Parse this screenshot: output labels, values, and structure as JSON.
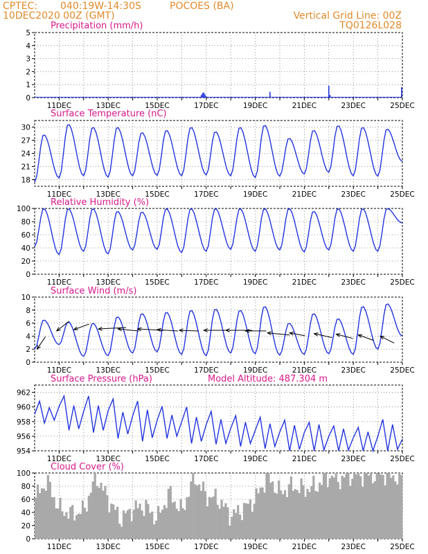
{
  "header": {
    "source": "CPTEC:",
    "location_code": "040:19W-14:30S",
    "station": "POCOES (BA)",
    "run": "10DEC2020 00Z (GMT)",
    "grid_note": "Vertical Grid Line: 00Z",
    "model_id": "TQ0126L028"
  },
  "colors": {
    "header": "#e08a2a",
    "panel_title": "#d6188a",
    "series": "#2233dd",
    "cloud": "#a9a9a9",
    "arrow": "#000000"
  },
  "x_axis": {
    "start_day": 10,
    "end_day": 25,
    "tick_labels": [
      "11DEC",
      "13DEC",
      "15DEC",
      "17DEC",
      "19DEC",
      "21DEC",
      "23DEC",
      "25DEC"
    ],
    "tick_days": [
      11,
      13,
      15,
      17,
      19,
      21,
      23,
      25
    ]
  },
  "chart_data": [
    {
      "type": "bar",
      "title": "Precipitation (mm/h)",
      "ylim": [
        0,
        5
      ],
      "yticks": [
        "0",
        "1",
        "2",
        "3",
        "4",
        "5"
      ],
      "x": [
        10.1,
        10.4,
        11.8,
        14.5,
        16.8,
        16.85,
        16.9,
        16.95,
        17.0,
        17.2,
        19.6,
        20.2,
        22.0,
        22.05,
        22.1,
        24.0,
        24.97
      ],
      "values": [
        0.06,
        0.04,
        0.03,
        0.03,
        0.2,
        0.35,
        0.4,
        0.25,
        0.1,
        0.05,
        0.45,
        0.04,
        0.9,
        0.2,
        0.05,
        0.04,
        0.8
      ]
    },
    {
      "type": "line",
      "title": "Surface Temperature (nC)",
      "ylim": [
        16.5,
        31.5
      ],
      "yticks": [
        "18",
        "21",
        "24",
        "27",
        "30"
      ],
      "ytick_values": [
        18,
        21,
        24,
        27,
        30
      ],
      "daily_max": [
        28.3,
        30.7,
        30.0,
        30.0,
        28.8,
        29.3,
        30.0,
        29.0,
        30.0,
        30.5,
        27.5,
        29.3,
        30.4,
        30.0,
        29.6
      ],
      "daily_min": [
        17.4,
        18.4,
        18.9,
        18.6,
        18.9,
        19.0,
        18.9,
        19.1,
        18.9,
        18.5,
        18.8,
        19.3,
        19.7,
        18.9,
        18.8
      ],
      "end_value": 22.2
    },
    {
      "type": "line",
      "title": "Relative Humidity (%)",
      "ylim": [
        0,
        100
      ],
      "yticks": [
        "0",
        "20",
        "40",
        "60",
        "80",
        "100"
      ],
      "ytick_values": [
        0,
        20,
        40,
        60,
        80,
        100
      ],
      "daily_max": [
        100,
        100,
        100,
        96,
        95,
        100,
        100,
        100,
        100,
        100,
        100,
        96,
        100,
        100,
        100
      ],
      "daily_min": [
        42,
        30,
        35,
        31,
        37,
        38,
        33,
        35,
        38,
        35,
        37,
        34,
        37,
        35,
        35
      ],
      "end_value": 78
    },
    {
      "type": "line",
      "title": "Surface Wind (m/s)",
      "ylim": [
        0,
        10
      ],
      "yticks": [
        "0",
        "2",
        "4",
        "6",
        "8",
        "10"
      ],
      "ytick_values": [
        0,
        2,
        4,
        6,
        8,
        10
      ],
      "daily_max": [
        6.5,
        6.2,
        6.0,
        7.0,
        7.5,
        7.7,
        8.0,
        8.2,
        8.0,
        8.6,
        6.0,
        7.5,
        6.7,
        8.6,
        9.0
      ],
      "daily_min": [
        2.0,
        2.7,
        0.9,
        1.0,
        1.4,
        1.6,
        1.2,
        1.0,
        1.4,
        1.3,
        1.1,
        1.2,
        1.3,
        1.2,
        2.0
      ],
      "end_value": 4.0,
      "arrows_x": [
        10.1,
        10.9,
        11.6,
        12.6,
        13.4,
        14.2,
        15.0,
        15.9,
        16.9,
        17.8,
        18.6,
        19.5,
        20.4,
        21.4,
        22.3,
        23.2,
        24.1
      ],
      "arrows_speed": [
        2.0,
        4.8,
        5.0,
        5.1,
        5.1,
        5.1,
        5.0,
        4.9,
        4.9,
        4.9,
        4.8,
        4.5,
        4.5,
        4.4,
        4.3,
        4.2,
        4.0
      ],
      "arrows_dx": [
        12,
        18,
        22,
        40,
        30,
        38,
        30,
        28,
        34,
        38,
        30,
        32,
        22,
        26,
        24,
        22,
        20
      ],
      "arrows_dy": [
        -18,
        -14,
        -8,
        -2,
        3,
        2,
        2,
        1,
        0,
        0,
        0,
        3,
        4,
        6,
        6,
        8,
        10
      ]
    },
    {
      "type": "line",
      "title": "Surface Pressure (hPa)",
      "annotation": "Model Altitude: 487.304 m",
      "ylim": [
        954,
        963
      ],
      "yticks": [
        "954",
        "956",
        "958",
        "960",
        "962"
      ],
      "ytick_values": [
        954,
        956,
        958,
        960,
        962
      ],
      "daily_series": [
        [
          959.0,
          960.8,
          957.8,
          959.9,
          958.2
        ],
        [
          960.1,
          961.5,
          956.8,
          960.2,
          957.0
        ],
        [
          959.4,
          961.5,
          956.5,
          960.2,
          956.8
        ],
        [
          959.5,
          961.1,
          955.7,
          959.3,
          956.3
        ],
        [
          958.8,
          960.8,
          955.3,
          959.6,
          955.8
        ],
        [
          958.2,
          960.1,
          955.7,
          958.9,
          956.0
        ],
        [
          958.0,
          960.0,
          955.0,
          958.6,
          955.3
        ],
        [
          957.6,
          959.4,
          954.9,
          958.3,
          955.0
        ],
        [
          957.1,
          958.8,
          954.6,
          957.9,
          955.0
        ],
        [
          956.8,
          958.6,
          954.3,
          957.7,
          954.6
        ],
        [
          956.6,
          958.2,
          954.0,
          957.5,
          954.2
        ],
        [
          956.5,
          957.9,
          954.0,
          957.6,
          954.1
        ],
        [
          956.0,
          957.4,
          954.0,
          957.0,
          954.1
        ],
        [
          955.8,
          957.2,
          954.0,
          956.6,
          954.0
        ],
        [
          956.0,
          958.3,
          954.0,
          957.6,
          954.2
        ]
      ],
      "end_value": 955.6
    },
    {
      "type": "bar",
      "title": "Cloud Cover (%)",
      "ylim": [
        0,
        100
      ],
      "yticks": [
        "0",
        "20",
        "40",
        "60",
        "80",
        "100"
      ],
      "ytick_values": [
        0,
        20,
        40,
        60,
        80,
        100
      ],
      "x": [
        10.0,
        10.5,
        11.0,
        11.5,
        12.0,
        12.5,
        13.0,
        13.5,
        14.0,
        14.5,
        15.0,
        15.5,
        16.0,
        16.5,
        17.0,
        17.5,
        18.0,
        18.5,
        19.0,
        19.5,
        20.0,
        20.5,
        21.0,
        21.5,
        22.0,
        22.5,
        23.0,
        23.5,
        24.0,
        24.5,
        25.0
      ],
      "values": [
        60,
        88,
        45,
        38,
        42,
        95,
        60,
        30,
        45,
        50,
        30,
        70,
        40,
        95,
        65,
        60,
        35,
        45,
        60,
        95,
        70,
        80,
        75,
        80,
        95,
        90,
        98,
        96,
        97,
        97,
        90
      ]
    }
  ]
}
